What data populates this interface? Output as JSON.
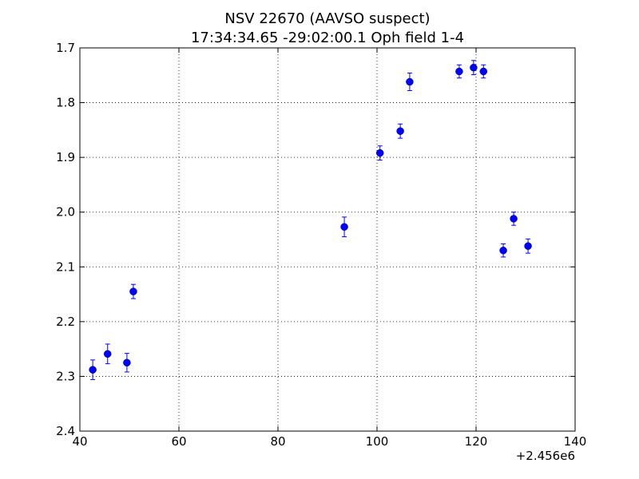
{
  "chart_data": {
    "type": "scatter",
    "title": "NSV 22670  (AAVSO suspect)",
    "subtitle": "17:34:34.65 -29:02:00.1 Oph field 1-4",
    "xlabel": "",
    "ylabel": "",
    "x_offset_label": "+2.456e6",
    "xlim": [
      40,
      140
    ],
    "ylim": [
      1.7,
      2.4
    ],
    "y_inverted": true,
    "grid": true,
    "x_ticks": [
      40,
      60,
      80,
      100,
      120,
      140
    ],
    "x_tick_labels": [
      "40",
      "60",
      "80",
      "100",
      "120",
      "140"
    ],
    "y_ticks": [
      1.7,
      1.8,
      1.9,
      2.0,
      2.1,
      2.2,
      2.3,
      2.4
    ],
    "y_tick_labels": [
      "1.7",
      "1.8",
      "1.9",
      "2.0",
      "2.1",
      "2.2",
      "2.3",
      "2.4"
    ],
    "marker_color": "#0000ff",
    "series": [
      {
        "points": [
          {
            "x": 42.6,
            "y": 2.288,
            "err": 0.018
          },
          {
            "x": 45.6,
            "y": 2.259,
            "err": 0.018
          },
          {
            "x": 49.5,
            "y": 2.275,
            "err": 0.017
          },
          {
            "x": 50.8,
            "y": 2.145,
            "err": 0.013
          },
          {
            "x": 93.4,
            "y": 2.027,
            "err": 0.018
          },
          {
            "x": 100.6,
            "y": 1.892,
            "err": 0.013
          },
          {
            "x": 104.7,
            "y": 1.852,
            "err": 0.013
          },
          {
            "x": 106.6,
            "y": 1.762,
            "err": 0.016
          },
          {
            "x": 116.6,
            "y": 1.743,
            "err": 0.012
          },
          {
            "x": 119.5,
            "y": 1.736,
            "err": 0.013
          },
          {
            "x": 121.5,
            "y": 1.743,
            "err": 0.012
          },
          {
            "x": 125.5,
            "y": 2.07,
            "err": 0.012
          },
          {
            "x": 127.6,
            "y": 2.012,
            "err": 0.012
          },
          {
            "x": 130.5,
            "y": 2.062,
            "err": 0.013
          }
        ]
      }
    ]
  }
}
